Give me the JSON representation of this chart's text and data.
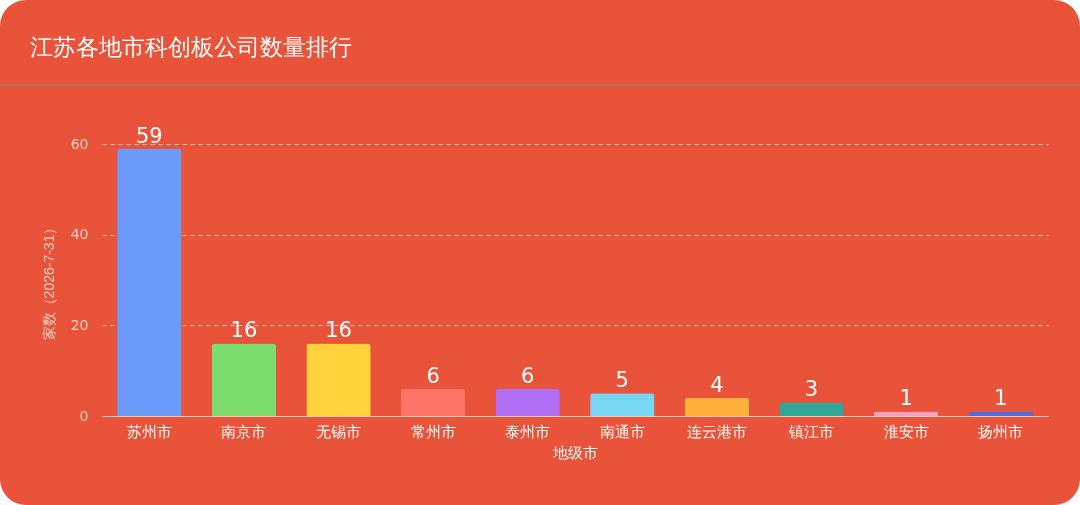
{
  "chart_data": {
    "type": "bar",
    "title": "江苏各地市科创板公司数量排行",
    "xlabel": "地级市",
    "ylabel": "家数（2026-7-31）",
    "categories": [
      "苏州市",
      "南京市",
      "无锡市",
      "常州市",
      "泰州市",
      "南通市",
      "连云港市",
      "镇江市",
      "淮安市",
      "扬州市"
    ],
    "values": [
      59,
      16,
      16,
      6,
      6,
      5,
      4,
      3,
      1,
      1
    ],
    "colors": [
      "#6a9bfb",
      "#7ddc6e",
      "#ffd23c",
      "#ff7466",
      "#b06ef5",
      "#78d6f5",
      "#ffb03a",
      "#2ea79a",
      "#f7a0c0",
      "#4c6fe0"
    ],
    "ylim": [
      0,
      60
    ],
    "yticks": [
      0,
      20,
      40,
      60
    ],
    "grid": "y",
    "data_labels": true
  }
}
